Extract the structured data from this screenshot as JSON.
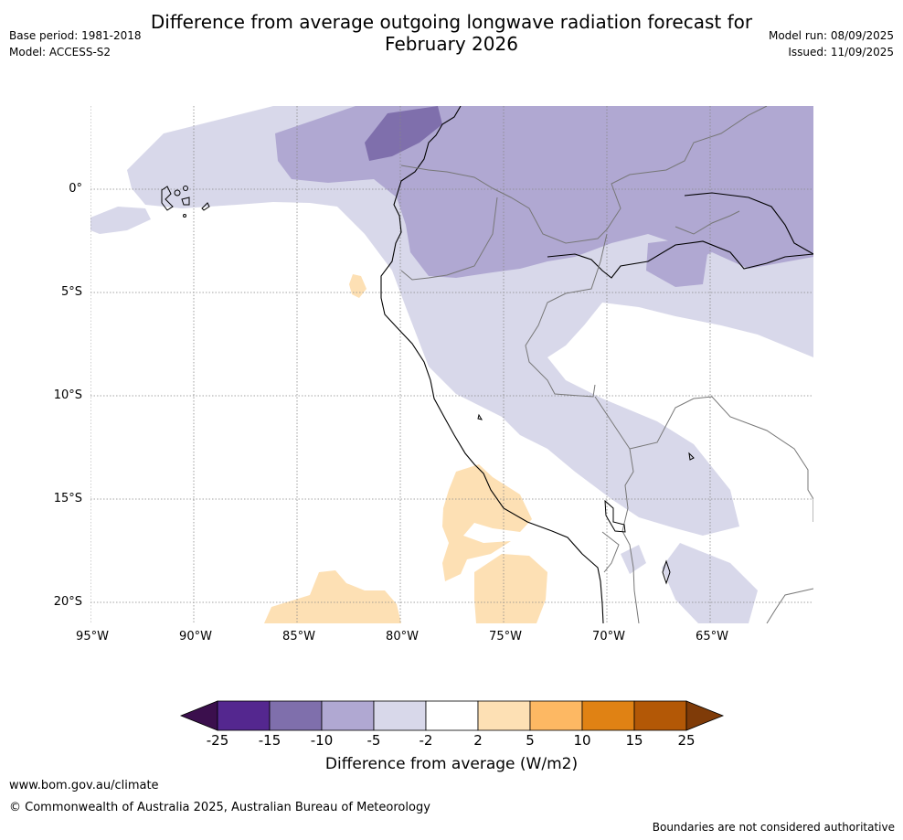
{
  "title_line1": "Difference from average outgoing longwave radiation forecast for",
  "title_line2": "February 2026",
  "base_period": "Base period: 1981-2018",
  "model": "Model: ACCESS-S2",
  "model_run": "Model run: 08/09/2025",
  "issued": "Issued: 11/09/2025",
  "latitudes": [
    "0°",
    "5°S",
    "10°S",
    "15°S",
    "20°S"
  ],
  "longitudes": [
    "95°W",
    "90°W",
    "85°W",
    "80°W",
    "75°W",
    "70°W",
    "65°W"
  ],
  "colorbar": {
    "ticks": [
      "-25",
      "-15",
      "-10",
      "-5",
      "-2",
      "2",
      "5",
      "10",
      "15",
      "25"
    ],
    "colors": [
      "#3b0f4d",
      "#54278f",
      "#7f6fac",
      "#b0a8d2",
      "#d8d8ea",
      "#ffffff",
      "#fde0b4",
      "#fdb863",
      "#e08214",
      "#b35806",
      "#7f3b08"
    ],
    "label": "Difference from average (W/m2)"
  },
  "website": "www.bom.gov.au/climate",
  "copyright": "© Commonwealth of Australia 2025, Australian Bureau of Meteorology",
  "disclaimer": "Boundaries are not considered authoritative"
}
